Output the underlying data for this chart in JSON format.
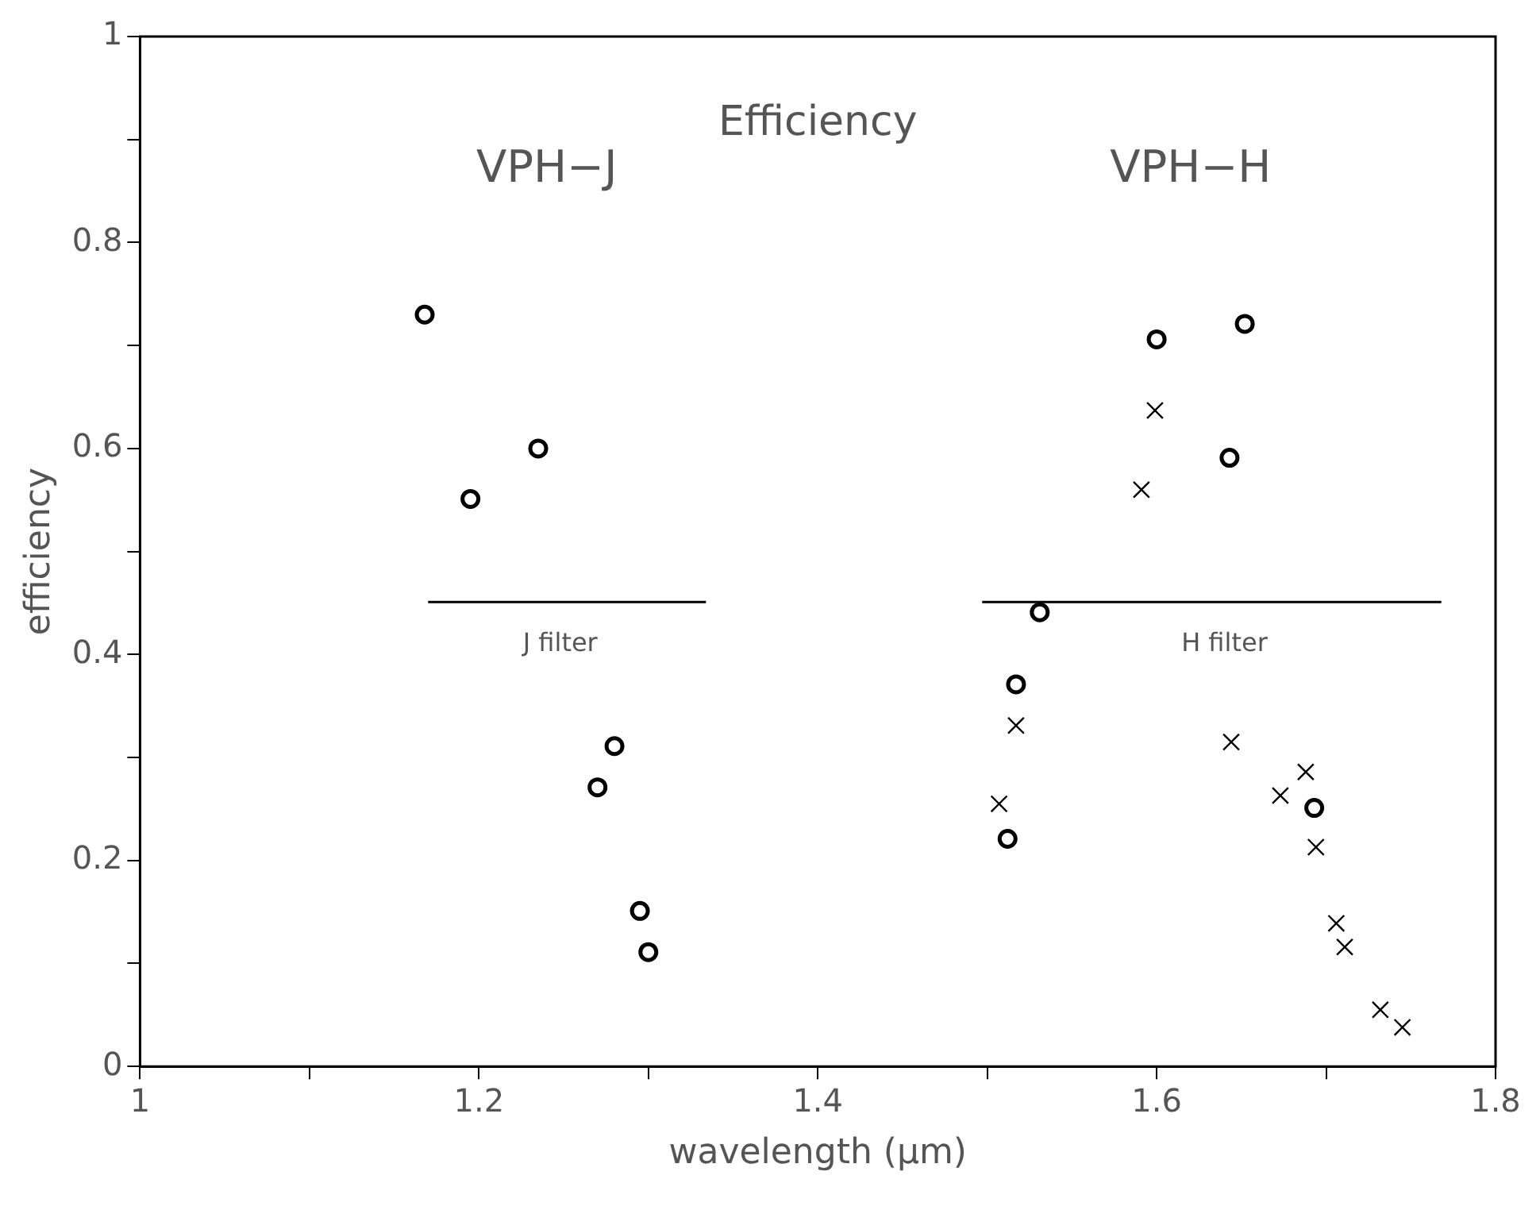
{
  "chart_data": {
    "type": "scatter",
    "title": "Efficiency",
    "xlabel": "wavelength (μm)",
    "ylabel": "efficiency",
    "xlim": [
      1,
      1.8
    ],
    "ylim": [
      0,
      1
    ],
    "xticks": [
      1,
      {
        "value": 1.1,
        "label": null
      },
      1.2,
      {
        "value": 1.3,
        "label": null
      },
      1.4,
      {
        "value": 1.5,
        "label": null
      },
      1.6,
      {
        "value": 1.7,
        "label": null
      },
      1.8
    ],
    "yticks": [
      0,
      {
        "value": 0.1,
        "label": null
      },
      0.2,
      {
        "value": 0.3,
        "label": null
      },
      0.4,
      {
        "value": 0.5,
        "label": null
      },
      0.6,
      {
        "value": 0.7,
        "label": null
      },
      0.8,
      {
        "value": 0.9,
        "label": null
      },
      1
    ],
    "grid": false,
    "legend": false,
    "series": [
      {
        "type": "scatter",
        "marker": "circle",
        "color": "#000000",
        "x": [
          1.168,
          1.195,
          1.235,
          1.28,
          1.27,
          1.295,
          1.3,
          1.6,
          1.652,
          1.643,
          1.531,
          1.517,
          1.512,
          1.693
        ],
        "values": [
          0.73,
          0.551,
          0.6,
          0.311,
          0.271,
          0.151,
          0.111,
          0.706,
          0.721,
          0.591,
          0.441,
          0.371,
          0.221,
          0.251
        ]
      },
      {
        "type": "scatter",
        "marker": "cross",
        "color": "#000000",
        "x": [
          1.599,
          1.591,
          1.517,
          1.507,
          1.644,
          1.688,
          1.673,
          1.694,
          1.706,
          1.711,
          1.732,
          1.745
        ],
        "values": [
          0.637,
          0.56,
          0.331,
          0.255,
          0.315,
          0.286,
          0.263,
          0.213,
          0.139,
          0.116,
          0.055,
          0.038
        ]
      },
      {
        "type": "line",
        "marker": "none",
        "color": "#000000",
        "x": [
          1.17,
          1.334
        ],
        "values": [
          0.451,
          0.451
        ]
      },
      {
        "type": "line",
        "marker": "none",
        "color": "#000000",
        "x": [
          1.497,
          1.768
        ],
        "values": [
          0.451,
          0.451
        ]
      }
    ],
    "annotations": [
      "VPH−J",
      "VPH−H",
      "J filter",
      "H filter"
    ]
  }
}
